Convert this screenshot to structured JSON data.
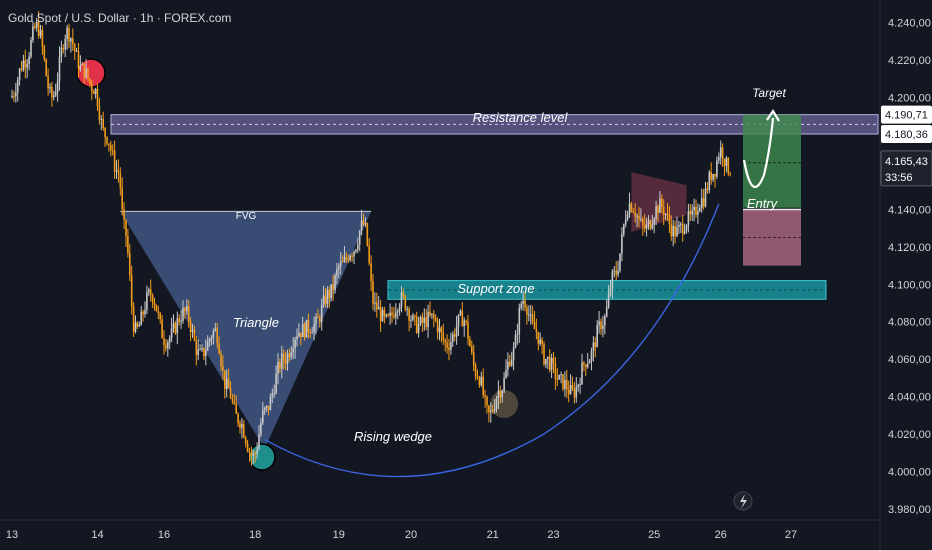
{
  "header": {
    "title": "Gold Spot / U.S. Dollar · 1h · FOREX.com"
  },
  "chart_data": {
    "type": "candlestick",
    "symbol": "Gold Spot / U.S. Dollar",
    "timeframe": "1h",
    "source": "FOREX.com",
    "y_axis": {
      "ticks": [
        "4.240,00",
        "4.220,00",
        "4.200,00",
        "4.140,00",
        "4.120,00",
        "4.100,00",
        "4.080,00",
        "4.060,00",
        "4.040,00",
        "4.020,00",
        "4.000,00",
        "3.980,00"
      ],
      "tick_values": [
        4240,
        4220,
        4200,
        4140,
        4120,
        4100,
        4080,
        4060,
        4040,
        4020,
        4000,
        3980
      ],
      "range": [
        3974,
        4252
      ]
    },
    "x_axis": {
      "ticks": [
        "13",
        "14",
        "16",
        "18",
        "19",
        "20",
        "21",
        "23",
        "25",
        "26",
        "27"
      ],
      "tick_index": [
        0,
        45,
        80,
        128,
        172,
        210,
        253,
        285,
        338,
        373,
        410
      ]
    },
    "price_labels": [
      {
        "text": "4.190,71",
        "value": 4190.71,
        "bg": "#ffffff",
        "fg": "#131722"
      },
      {
        "text": "4.180,36",
        "value": 4180.36,
        "bg": "#ffffff",
        "fg": "#131722"
      }
    ],
    "current_price": {
      "text": "4.165,43",
      "value": 4165.43,
      "countdown": "33:56"
    },
    "annotations": [
      {
        "text": "Target",
        "style": "italic"
      },
      {
        "text": "Resistance level",
        "style": "italic"
      },
      {
        "text": "FVG",
        "style": "normal"
      },
      {
        "text": "Triangle",
        "style": "italic"
      },
      {
        "text": "Support zone",
        "style": "italic"
      },
      {
        "text": "Entry",
        "style": "italic"
      },
      {
        "text": "Rising wedge",
        "style": "italic"
      }
    ],
    "zones": [
      {
        "kind": "resistance",
        "from": 4180.36,
        "to": 4190.71,
        "color": "#8a7fc4"
      },
      {
        "kind": "support",
        "from": 4092,
        "to": 4102,
        "color": "#19a6b0"
      },
      {
        "kind": "target",
        "from": 4141,
        "to": 4190.71,
        "color": "#3e8c4e"
      },
      {
        "kind": "stop",
        "from": 4110,
        "to": 4140,
        "color": "#b06a86"
      }
    ],
    "up_color": "#c8c8c8",
    "down_color": "#f39c1a",
    "background": "#131722",
    "key_prices": [
      {
        "label": "14 high",
        "value": 4205
      },
      {
        "label": "FVG top",
        "value": 4140
      },
      {
        "label": "18 low",
        "value": 4008
      },
      {
        "label": "19 high",
        "value": 4132
      },
      {
        "label": "21 low",
        "value": 4030
      },
      {
        "label": "24 rally",
        "value": 4143
      },
      {
        "label": "26 high",
        "value": 4172
      }
    ]
  }
}
